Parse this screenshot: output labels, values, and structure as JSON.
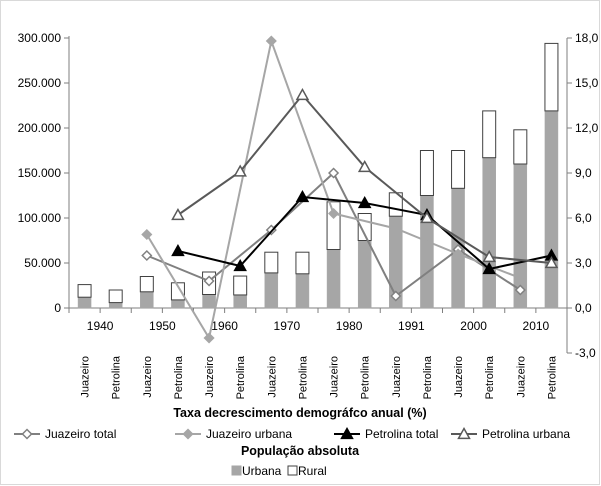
{
  "chart_data": {
    "type": "bar",
    "categories": [
      "Juazeiro",
      "Petrolina",
      "Juazeiro",
      "Petrolina",
      "Juazeiro",
      "Petrolina",
      "Juazeiro",
      "Petrolina",
      "Juazeiro",
      "Petrolina",
      "Juazeiro",
      "Petrolina",
      "Juazeiro",
      "Petrolina",
      "Juazeiro",
      "Petrolina"
    ],
    "years": [
      "1940",
      "1950",
      "1960",
      "1970",
      "1980",
      "1991",
      "2000",
      "2010"
    ],
    "left_axis": {
      "ylim": [
        0,
        300000
      ],
      "ticks": [
        0,
        50000,
        100000,
        150000,
        200000,
        250000,
        300000
      ],
      "tick_labels": [
        "0",
        "50.000",
        "100.000",
        "150.000",
        "200.000",
        "250.000",
        "300.000"
      ]
    },
    "right_axis": {
      "ylim": [
        -3,
        18
      ],
      "ticks": [
        -3,
        0,
        3,
        6,
        9,
        12,
        15,
        18
      ],
      "tick_labels": [
        "-3,0",
        "0,0",
        "3,0",
        "6,0",
        "9,0",
        "12,0",
        "15,0",
        "18,0"
      ]
    },
    "bar_series": [
      {
        "name": "Urbana",
        "color": "#a6a6a6",
        "values": [
          12000,
          6000,
          18000,
          9000,
          15000,
          14500,
          39000,
          38000,
          65000,
          75000,
          102000,
          125000,
          133000,
          167000,
          160000,
          219000
        ]
      },
      {
        "name": "Rural",
        "color": "#ffffff",
        "values": [
          14000,
          14000,
          17000,
          19000,
          25000,
          21000,
          23000,
          24000,
          53000,
          30000,
          26000,
          50000,
          42000,
          52000,
          38000,
          75000
        ]
      }
    ],
    "bar_legend_title": "População absoluta",
    "line_legend_title": "Taxa decrescimento demográfco anual (%)",
    "line_series": [
      {
        "name": "Juazeiro total",
        "color": "#808080",
        "marker": "diamond-open",
        "x_index": [
          2,
          4,
          6,
          8,
          10,
          12,
          14
        ],
        "values": [
          3.5,
          1.8,
          5.2,
          9.0,
          0.8,
          3.9,
          1.2
        ]
      },
      {
        "name": "Juazeiro urbana",
        "color": "#a6a6a6",
        "marker": "diamond-filled",
        "x_index": [
          2,
          4,
          6,
          8,
          10,
          12,
          14
        ],
        "values": [
          4.9,
          -2.0,
          17.8,
          6.3,
          5.3,
          3.6,
          2.0
        ]
      },
      {
        "name": "Petrolina total",
        "color": "#000000",
        "marker": "triangle-filled",
        "x_index": [
          3,
          5,
          7,
          9,
          11,
          13,
          15
        ],
        "values": [
          3.8,
          2.8,
          7.4,
          7.0,
          6.2,
          2.6,
          3.5
        ]
      },
      {
        "name": "Petrolina urbana",
        "color": "#595959",
        "marker": "triangle-open",
        "x_index": [
          3,
          5,
          7,
          9,
          11,
          13,
          15
        ],
        "values": [
          6.2,
          9.1,
          14.2,
          9.4,
          6.0,
          3.4,
          3.0
        ]
      }
    ],
    "grid": false
  }
}
